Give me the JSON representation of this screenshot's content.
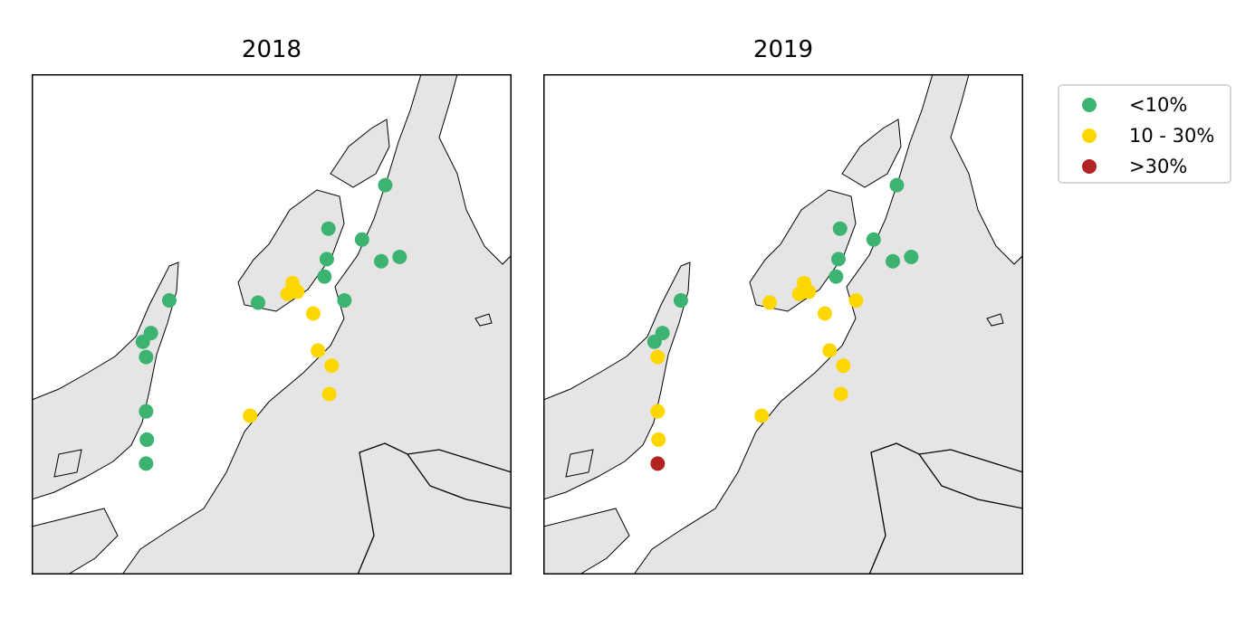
{
  "figure": {
    "panels": [
      {
        "title": "2018"
      },
      {
        "title": "2019"
      }
    ],
    "legend": [
      {
        "label": "<10%",
        "color": "#3cb371"
      },
      {
        "label": "10 - 30%",
        "color": "#ffd700"
      },
      {
        "label": ">30%",
        "color": "#b22222"
      }
    ],
    "land_color": "#e5e5e5"
  },
  "chart_data": {
    "type": "scatter",
    "extent_lon": [
      14.5,
      20.5
    ],
    "extent_lat": [
      68.0,
      70.3
    ],
    "categories": [
      "<10%",
      "10 - 30%",
      ">30%"
    ],
    "panels": [
      {
        "title": "2018",
        "points": [
          {
            "lon": 18.92,
            "lat": 69.79,
            "cat": 0
          },
          {
            "lon": 18.21,
            "lat": 69.59,
            "cat": 0
          },
          {
            "lon": 18.63,
            "lat": 69.54,
            "cat": 0
          },
          {
            "lon": 18.19,
            "lat": 69.45,
            "cat": 0
          },
          {
            "lon": 18.87,
            "lat": 69.44,
            "cat": 0
          },
          {
            "lon": 19.1,
            "lat": 69.46,
            "cat": 0
          },
          {
            "lon": 18.16,
            "lat": 69.37,
            "cat": 0
          },
          {
            "lon": 18.41,
            "lat": 69.26,
            "cat": 0
          },
          {
            "lon": 17.33,
            "lat": 69.25,
            "cat": 0
          },
          {
            "lon": 16.22,
            "lat": 69.26,
            "cat": 0
          },
          {
            "lon": 15.99,
            "lat": 69.11,
            "cat": 0
          },
          {
            "lon": 15.89,
            "lat": 69.07,
            "cat": 0
          },
          {
            "lon": 15.93,
            "lat": 69.0,
            "cat": 0
          },
          {
            "lon": 15.93,
            "lat": 68.75,
            "cat": 0
          },
          {
            "lon": 15.94,
            "lat": 68.62,
            "cat": 0
          },
          {
            "lon": 15.93,
            "lat": 68.51,
            "cat": 0
          },
          {
            "lon": 17.76,
            "lat": 69.34,
            "cat": 1
          },
          {
            "lon": 17.7,
            "lat": 69.29,
            "cat": 1
          },
          {
            "lon": 17.82,
            "lat": 69.3,
            "cat": 1
          },
          {
            "lon": 18.02,
            "lat": 69.2,
            "cat": 1
          },
          {
            "lon": 18.08,
            "lat": 69.03,
            "cat": 1
          },
          {
            "lon": 18.25,
            "lat": 68.96,
            "cat": 1
          },
          {
            "lon": 18.22,
            "lat": 68.83,
            "cat": 1
          },
          {
            "lon": 17.23,
            "lat": 68.73,
            "cat": 1
          }
        ]
      },
      {
        "title": "2019",
        "points": [
          {
            "lon": 18.92,
            "lat": 69.79,
            "cat": 0
          },
          {
            "lon": 18.21,
            "lat": 69.59,
            "cat": 0
          },
          {
            "lon": 18.63,
            "lat": 69.54,
            "cat": 0
          },
          {
            "lon": 18.19,
            "lat": 69.45,
            "cat": 0
          },
          {
            "lon": 18.87,
            "lat": 69.44,
            "cat": 0
          },
          {
            "lon": 19.1,
            "lat": 69.46,
            "cat": 0
          },
          {
            "lon": 18.16,
            "lat": 69.37,
            "cat": 0
          },
          {
            "lon": 16.22,
            "lat": 69.26,
            "cat": 0
          },
          {
            "lon": 15.99,
            "lat": 69.11,
            "cat": 0
          },
          {
            "lon": 15.89,
            "lat": 69.07,
            "cat": 0
          },
          {
            "lon": 17.33,
            "lat": 69.25,
            "cat": 1
          },
          {
            "lon": 17.76,
            "lat": 69.34,
            "cat": 1
          },
          {
            "lon": 17.7,
            "lat": 69.29,
            "cat": 1
          },
          {
            "lon": 17.82,
            "lat": 69.3,
            "cat": 1
          },
          {
            "lon": 18.02,
            "lat": 69.2,
            "cat": 1
          },
          {
            "lon": 18.41,
            "lat": 69.26,
            "cat": 1
          },
          {
            "lon": 18.08,
            "lat": 69.03,
            "cat": 1
          },
          {
            "lon": 18.25,
            "lat": 68.96,
            "cat": 1
          },
          {
            "lon": 18.22,
            "lat": 68.83,
            "cat": 1
          },
          {
            "lon": 17.23,
            "lat": 68.73,
            "cat": 1
          },
          {
            "lon": 15.93,
            "lat": 69.0,
            "cat": 1
          },
          {
            "lon": 15.93,
            "lat": 68.75,
            "cat": 1
          },
          {
            "lon": 15.94,
            "lat": 68.62,
            "cat": 1
          },
          {
            "lon": 15.93,
            "lat": 68.51,
            "cat": 2
          }
        ]
      }
    ]
  }
}
